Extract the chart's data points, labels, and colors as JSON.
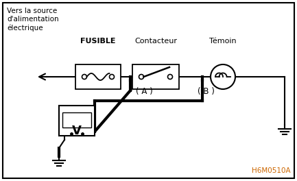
{
  "bg_color": "#ffffff",
  "border_color": "#000000",
  "text_color": "#000000",
  "orange_color": "#cc6600",
  "label_vers": "Vers la source\nd'alimentation\nélectrique",
  "label_fusible": "FUSIBLE",
  "label_contacteur": "Contacteur",
  "label_temoin": "Témoin",
  "label_A": "( A )",
  "label_B": "( B )",
  "label_code": "H6M0510A",
  "figsize": [
    4.33,
    2.64
  ],
  "dpi": 100
}
